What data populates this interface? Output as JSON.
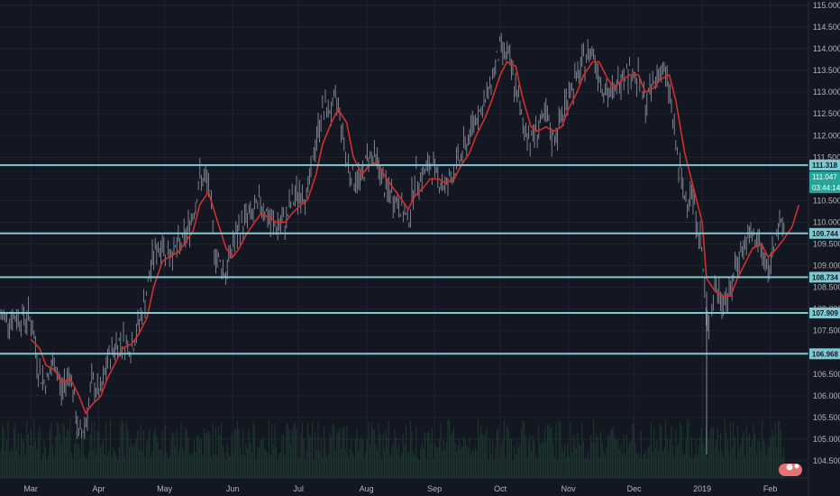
{
  "chart_data": {
    "type": "line",
    "subtype": "candlestick-ohlc",
    "instrument": "",
    "title": "",
    "xlabel": "",
    "ylabel": "",
    "ylim": [
      104.2,
      115.05
    ],
    "y_ticks": [
      "104.500",
      "105.000",
      "105.500",
      "106.000",
      "106.500",
      "107.000",
      "107.500",
      "108.000",
      "108.500",
      "109.000",
      "109.500",
      "110.000",
      "110.500",
      "111.000",
      "111.500",
      "112.000",
      "112.500",
      "113.000",
      "113.500",
      "114.000",
      "114.500",
      "115.000"
    ],
    "x_labels": [
      "Mar",
      "Apr",
      "May",
      "Jun",
      "Jul",
      "Aug",
      "Sep",
      "Oct",
      "Nov",
      "Dec",
      "2019",
      "Feb"
    ],
    "x_months_start": 0,
    "grid": true,
    "colors": {
      "background": "#131722",
      "grid": "#1f2430",
      "candles": "#8a8d99",
      "moving_average": "#d32f2f",
      "level_lines": "#7ec8cf",
      "current_price_tag": "#26a69a",
      "volume": "#1e3a2f"
    },
    "horizontal_levels": [
      {
        "label": "111.318",
        "value": 111.318
      },
      {
        "label": "109.744",
        "value": 109.744
      },
      {
        "label": "108.734",
        "value": 108.734
      },
      {
        "label": "107.909",
        "value": 107.909
      },
      {
        "label": "106.968",
        "value": 106.968
      }
    ],
    "current_price": {
      "label": "111.047",
      "value": 111.047,
      "countdown": "03:44:14"
    },
    "series": [
      {
        "name": "",
        "role": "price",
        "x": [
          "2018-03-01",
          "2018-03-05",
          "2018-03-08",
          "2018-03-12",
          "2018-03-15",
          "2018-03-19",
          "2018-03-23",
          "2018-03-26",
          "2018-03-29",
          "2018-04-02",
          "2018-04-05",
          "2018-04-09",
          "2018-04-12",
          "2018-04-16",
          "2018-04-19",
          "2018-04-23",
          "2018-04-26",
          "2018-04-30",
          "2018-05-03",
          "2018-05-07",
          "2018-05-10",
          "2018-05-14",
          "2018-05-17",
          "2018-05-21",
          "2018-05-24",
          "2018-05-29",
          "2018-06-01",
          "2018-06-04",
          "2018-06-07",
          "2018-06-11",
          "2018-06-14",
          "2018-06-18",
          "2018-06-21",
          "2018-06-25",
          "2018-06-28",
          "2018-07-02",
          "2018-07-05",
          "2018-07-09",
          "2018-07-12",
          "2018-07-16",
          "2018-07-19",
          "2018-07-23",
          "2018-07-26",
          "2018-07-30",
          "2018-08-02",
          "2018-08-06",
          "2018-08-09",
          "2018-08-13",
          "2018-08-16",
          "2018-08-20",
          "2018-08-23",
          "2018-08-27",
          "2018-08-30",
          "2018-09-03",
          "2018-09-06",
          "2018-09-10",
          "2018-09-13",
          "2018-09-17",
          "2018-09-20",
          "2018-09-24",
          "2018-09-27",
          "2018-10-01",
          "2018-10-04",
          "2018-10-08",
          "2018-10-11",
          "2018-10-15",
          "2018-10-18",
          "2018-10-22",
          "2018-10-25",
          "2018-10-29",
          "2018-11-01",
          "2018-11-05",
          "2018-11-08",
          "2018-11-12",
          "2018-11-15",
          "2018-11-19",
          "2018-11-22",
          "2018-11-26",
          "2018-11-29",
          "2018-12-03",
          "2018-12-06",
          "2018-12-10",
          "2018-12-13",
          "2018-12-17",
          "2018-12-20",
          "2018-12-24",
          "2018-12-27",
          "2019-01-01",
          "2019-01-03",
          "2019-01-07",
          "2019-01-10",
          "2019-01-14",
          "2019-01-17",
          "2019-01-21",
          "2019-01-24",
          "2019-01-28",
          "2019-01-31",
          "2019-02-04",
          "2019-02-07",
          "2019-02-11",
          "2019-02-14"
        ],
        "values": [
          107.8,
          106.5,
          106.3,
          106.8,
          106.1,
          106.6,
          105.0,
          105.4,
          106.3,
          106.0,
          106.8,
          107.2,
          107.3,
          107.1,
          107.6,
          108.4,
          109.3,
          109.5,
          109.3,
          109.4,
          109.6,
          110.2,
          111.0,
          110.9,
          109.3,
          108.8,
          109.5,
          109.8,
          110.1,
          110.2,
          110.5,
          110.0,
          109.9,
          110.0,
          110.5,
          110.7,
          110.6,
          111.9,
          112.6,
          112.6,
          112.8,
          111.4,
          111.0,
          111.0,
          111.6,
          111.4,
          110.8,
          110.6,
          110.4,
          110.0,
          111.0,
          111.1,
          111.3,
          111.0,
          110.8,
          111.2,
          111.5,
          112.0,
          112.5,
          112.7,
          113.3,
          114.0,
          113.9,
          113.1,
          112.3,
          111.9,
          112.2,
          112.4,
          111.9,
          112.4,
          113.0,
          113.3,
          113.7,
          114.0,
          113.4,
          112.9,
          113.0,
          113.5,
          113.5,
          113.3,
          112.7,
          113.2,
          113.6,
          113.1,
          111.7,
          110.5,
          110.8,
          109.3,
          107.5,
          108.5,
          108.2,
          108.4,
          109.2,
          109.5,
          109.7,
          109.4,
          108.8,
          109.9,
          109.8,
          110.3,
          111.0
        ]
      },
      {
        "name": "",
        "role": "moving-average",
        "values": [
          107.3,
          107.1,
          106.7,
          106.6,
          106.3,
          106.4,
          106.0,
          105.6,
          105.8,
          106.0,
          106.4,
          106.8,
          107.1,
          107.2,
          107.4,
          107.8,
          108.5,
          109.1,
          109.2,
          109.3,
          109.5,
          109.8,
          110.4,
          110.7,
          110.2,
          109.4,
          109.2,
          109.4,
          109.7,
          110.0,
          110.2,
          110.1,
          110.0,
          110.0,
          110.2,
          110.4,
          110.5,
          111.1,
          111.8,
          112.3,
          112.6,
          112.3,
          111.5,
          111.1,
          111.3,
          111.4,
          111.1,
          110.8,
          110.6,
          110.3,
          110.6,
          110.8,
          111.0,
          111.0,
          110.9,
          111.0,
          111.3,
          111.6,
          112.0,
          112.4,
          112.8,
          113.4,
          113.7,
          113.6,
          112.9,
          112.2,
          112.1,
          112.2,
          112.1,
          112.2,
          112.6,
          113.0,
          113.4,
          113.7,
          113.7,
          113.3,
          113.1,
          113.3,
          113.4,
          113.4,
          113.0,
          113.1,
          113.3,
          113.4,
          112.8,
          111.6,
          111.0,
          110.0,
          108.7,
          108.4,
          108.3,
          108.3,
          108.7,
          109.1,
          109.4,
          109.5,
          109.2,
          109.4,
          109.6,
          109.9,
          110.4
        ]
      }
    ]
  }
}
